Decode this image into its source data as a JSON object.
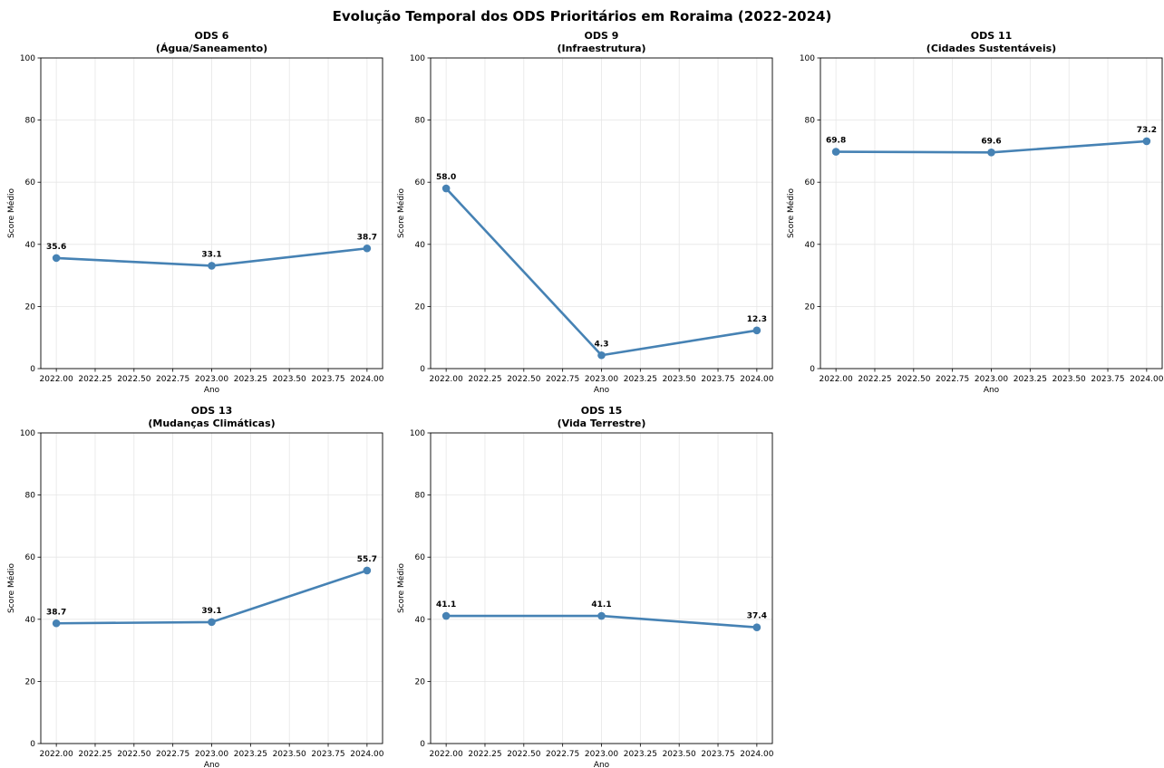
{
  "figure": {
    "title": "Evolução Temporal dos ODS Prioritários em Roraima (2022-2024)"
  },
  "colors": {
    "line": "#4682b4",
    "grid": "#e6e6e6",
    "axis": "#000000"
  },
  "chart_data": [
    {
      "type": "line",
      "title": "ODS 6",
      "subtitle": "(Água/Saneamento)",
      "xlabel": "Ano",
      "ylabel": "Score Médio",
      "x": [
        2022,
        2023,
        2024
      ],
      "values": [
        35.6,
        33.1,
        38.7
      ],
      "data_labels": [
        "35.6",
        "33.1",
        "38.7"
      ],
      "ylim": [
        0,
        100
      ],
      "yticks": [
        "0",
        "20",
        "40",
        "60",
        "80",
        "100"
      ],
      "xticks": [
        "2022.00",
        "2022.25",
        "2022.50",
        "2022.75",
        "2023.00",
        "2023.25",
        "2023.50",
        "2023.75",
        "2024.00"
      ],
      "grid": true
    },
    {
      "type": "line",
      "title": "ODS 9",
      "subtitle": "(Infraestrutura)",
      "xlabel": "Ano",
      "ylabel": "Score Médio",
      "x": [
        2022,
        2023,
        2024
      ],
      "values": [
        58.0,
        4.3,
        12.3
      ],
      "data_labels": [
        "58.0",
        "4.3",
        "12.3"
      ],
      "ylim": [
        0,
        100
      ],
      "yticks": [
        "0",
        "20",
        "40",
        "60",
        "80",
        "100"
      ],
      "xticks": [
        "2022.00",
        "2022.25",
        "2022.50",
        "2022.75",
        "2023.00",
        "2023.25",
        "2023.50",
        "2023.75",
        "2024.00"
      ],
      "grid": true
    },
    {
      "type": "line",
      "title": "ODS 11",
      "subtitle": "(Cidades Sustentáveis)",
      "xlabel": "Ano",
      "ylabel": "Score Médio",
      "x": [
        2022,
        2023,
        2024
      ],
      "values": [
        69.8,
        69.6,
        73.2
      ],
      "data_labels": [
        "69.8",
        "69.6",
        "73.2"
      ],
      "ylim": [
        0,
        100
      ],
      "yticks": [
        "0",
        "20",
        "40",
        "60",
        "80",
        "100"
      ],
      "xticks": [
        "2022.00",
        "2022.25",
        "2022.50",
        "2022.75",
        "2023.00",
        "2023.25",
        "2023.50",
        "2023.75",
        "2024.00"
      ],
      "grid": true
    },
    {
      "type": "line",
      "title": "ODS 13",
      "subtitle": "(Mudanças Climáticas)",
      "xlabel": "Ano",
      "ylabel": "Score Médio",
      "x": [
        2022,
        2023,
        2024
      ],
      "values": [
        38.7,
        39.1,
        55.7
      ],
      "data_labels": [
        "38.7",
        "39.1",
        "55.7"
      ],
      "ylim": [
        0,
        100
      ],
      "yticks": [
        "0",
        "20",
        "40",
        "60",
        "80",
        "100"
      ],
      "xticks": [
        "2022.00",
        "2022.25",
        "2022.50",
        "2022.75",
        "2023.00",
        "2023.25",
        "2023.50",
        "2023.75",
        "2024.00"
      ],
      "grid": true
    },
    {
      "type": "line",
      "title": "ODS 15",
      "subtitle": "(Vida Terrestre)",
      "xlabel": "Ano",
      "ylabel": "Score Médio",
      "x": [
        2022,
        2023,
        2024
      ],
      "values": [
        41.1,
        41.1,
        37.4
      ],
      "data_labels": [
        "41.1",
        "41.1",
        "37.4"
      ],
      "ylim": [
        0,
        100
      ],
      "yticks": [
        "0",
        "20",
        "40",
        "60",
        "80",
        "100"
      ],
      "xticks": [
        "2022.00",
        "2022.25",
        "2022.50",
        "2022.75",
        "2023.00",
        "2023.25",
        "2023.50",
        "2023.75",
        "2024.00"
      ],
      "grid": true
    }
  ]
}
